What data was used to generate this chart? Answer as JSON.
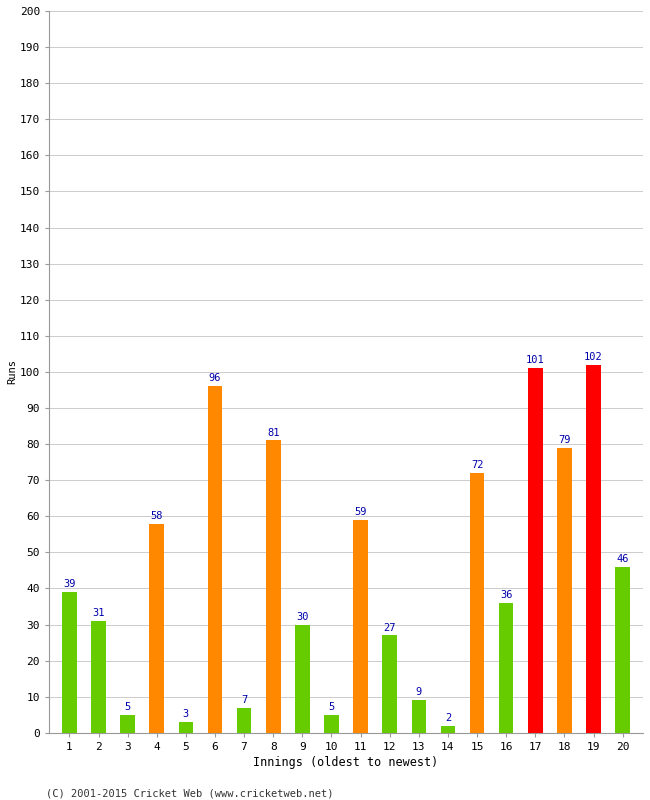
{
  "innings": [
    1,
    2,
    3,
    4,
    5,
    6,
    7,
    8,
    9,
    10,
    11,
    12,
    13,
    14,
    15,
    16,
    17,
    18,
    19,
    20
  ],
  "values": [
    39,
    31,
    5,
    58,
    3,
    96,
    7,
    81,
    30,
    5,
    59,
    27,
    9,
    2,
    72,
    36,
    101,
    79,
    102,
    46
  ],
  "colors": [
    "#66cc00",
    "#66cc00",
    "#66cc00",
    "#ff8800",
    "#66cc00",
    "#ff8800",
    "#66cc00",
    "#ff8800",
    "#66cc00",
    "#66cc00",
    "#ff8800",
    "#66cc00",
    "#66cc00",
    "#66cc00",
    "#ff8800",
    "#66cc00",
    "#ff0000",
    "#ff8800",
    "#ff0000",
    "#66cc00"
  ],
  "xlabel": "Innings (oldest to newest)",
  "ylabel": "Runs",
  "ylim": [
    0,
    200
  ],
  "yticks": [
    0,
    10,
    20,
    30,
    40,
    50,
    60,
    70,
    80,
    90,
    100,
    110,
    120,
    130,
    140,
    150,
    160,
    170,
    180,
    190,
    200
  ],
  "label_color": "#0000aa",
  "background_color": "#ffffff",
  "footer": "(C) 2001-2015 Cricket Web (www.cricketweb.net)",
  "bar_width": 0.5,
  "label_fontsize": 7.5,
  "axis_fontsize": 8.5,
  "tick_fontsize": 8,
  "ylabel_fontsize": 7.5,
  "grid_color": "#cccccc"
}
